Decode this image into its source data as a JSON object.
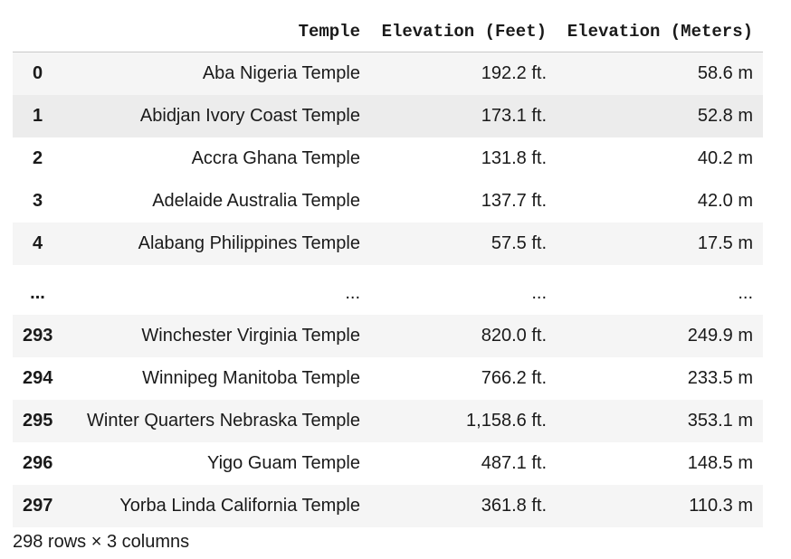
{
  "table": {
    "columns": [
      "",
      "Temple",
      "Elevation (Feet)",
      "Elevation (Meters)"
    ],
    "rows": [
      {
        "index": "0",
        "temple": "Aba Nigeria Temple",
        "feet": "192.2 ft.",
        "meters": "58.6 m"
      },
      {
        "index": "1",
        "temple": "Abidjan Ivory Coast Temple",
        "feet": "173.1 ft.",
        "meters": "52.8 m"
      },
      {
        "index": "2",
        "temple": "Accra Ghana Temple",
        "feet": "131.8 ft.",
        "meters": "40.2 m"
      },
      {
        "index": "3",
        "temple": "Adelaide Australia Temple",
        "feet": "137.7 ft.",
        "meters": "42.0 m"
      },
      {
        "index": "4",
        "temple": "Alabang Philippines Temple",
        "feet": "57.5 ft.",
        "meters": "17.5 m"
      },
      {
        "index": "...",
        "temple": "...",
        "feet": "...",
        "meters": "..."
      },
      {
        "index": "293",
        "temple": "Winchester Virginia Temple",
        "feet": "820.0 ft.",
        "meters": "249.9 m"
      },
      {
        "index": "294",
        "temple": "Winnipeg Manitoba Temple",
        "feet": "766.2 ft.",
        "meters": "233.5 m"
      },
      {
        "index": "295",
        "temple": "Winter Quarters Nebraska Temple",
        "feet": "1,158.6 ft.",
        "meters": "353.1 m"
      },
      {
        "index": "296",
        "temple": "Yigo Guam Temple",
        "feet": "487.1 ft.",
        "meters": "148.5 m"
      },
      {
        "index": "297",
        "temple": "Yorba Linda California Temple",
        "feet": "361.8 ft.",
        "meters": "110.3 m"
      }
    ]
  },
  "footer": "298 rows × 3 columns",
  "colors": {
    "row_shade": "#f5f5f5",
    "row_hover": "#ececec",
    "header_border": "#c9c9c9"
  }
}
